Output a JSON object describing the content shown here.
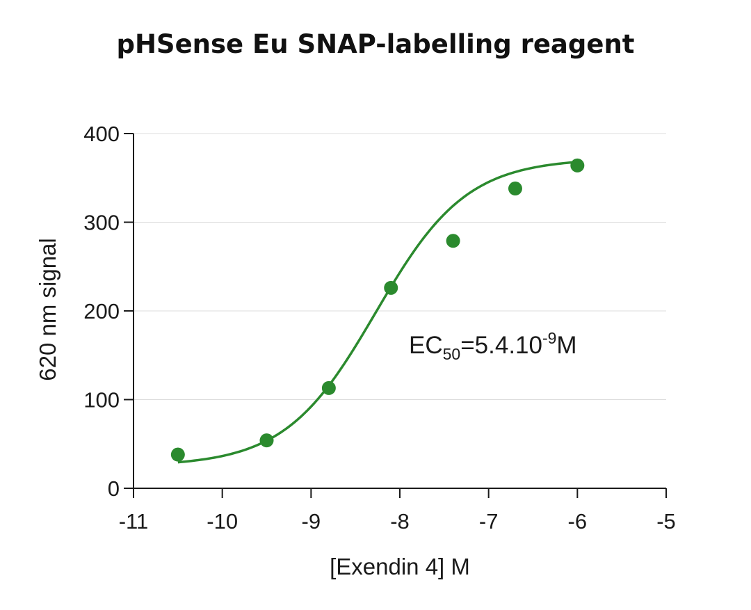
{
  "chart_data": {
    "type": "scatter",
    "title": "pHSense Eu SNAP-labelling reagent",
    "xlabel": "[Exendin 4] M",
    "ylabel": "620 nm signal",
    "xlim": [
      -11,
      -5
    ],
    "ylim": [
      0,
      400
    ],
    "xticks": [
      -11,
      -10,
      -9,
      -8,
      -7,
      -6,
      -5
    ],
    "yticks": [
      0,
      100,
      200,
      300,
      400
    ],
    "xtick_labels": [
      "-11",
      "-10",
      "-9",
      "-8",
      "-7",
      "-6",
      "-5"
    ],
    "ytick_labels": [
      "0",
      "100",
      "200",
      "300",
      "400"
    ],
    "grid": "horizontal",
    "color": "#2b8a2e",
    "points": {
      "x": [
        -10.5,
        -9.5,
        -8.8,
        -8.1,
        -7.4,
        -6.7,
        -6.0
      ],
      "y": [
        38,
        54,
        113,
        226,
        279,
        338,
        364
      ]
    },
    "fit": {
      "model": "sigmoidal dose-response",
      "bottom": 25,
      "top": 372,
      "logEC50": -8.27,
      "hill": 0.85,
      "x_range": [
        -10.5,
        -6.0
      ]
    },
    "annotation": {
      "prefix": "EC",
      "sub": "50",
      "mid": "=5.4.10",
      "sup": "-9",
      "suffix": "M"
    }
  }
}
